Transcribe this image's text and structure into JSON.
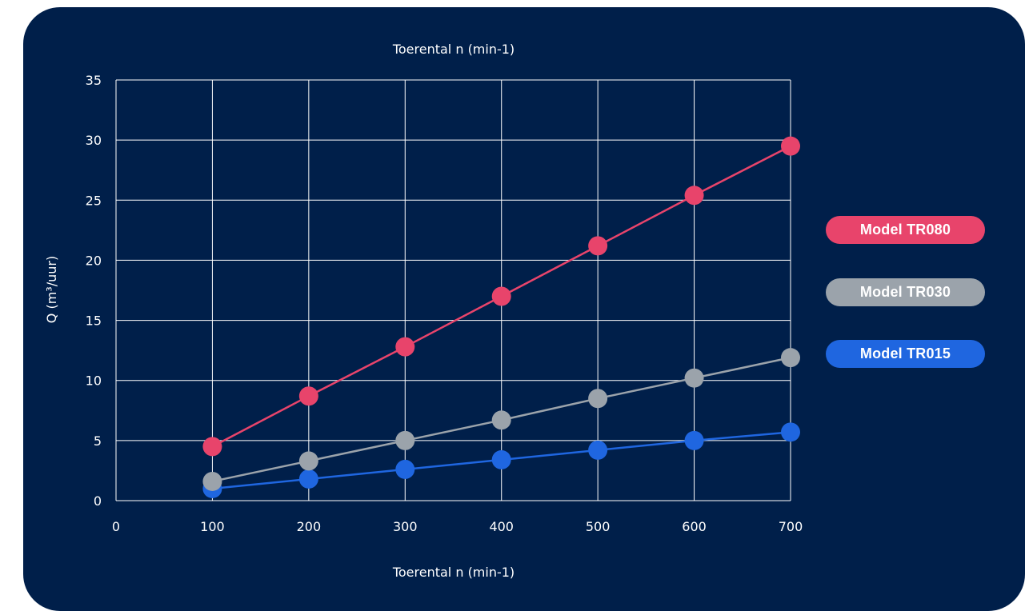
{
  "chart_data": {
    "type": "line",
    "top_axis_label": "Toerental n (min-1)",
    "xlabel": "Toerental n (min-1)",
    "ylabel": "Q (m³/uur)",
    "x_ticks": [
      "0",
      "100",
      "200",
      "300",
      "400",
      "500",
      "600",
      "700"
    ],
    "y_ticks": [
      "0",
      "5",
      "10",
      "15",
      "20",
      "25",
      "30",
      "35"
    ],
    "xlim": [
      0,
      700
    ],
    "ylim": [
      0,
      35
    ],
    "grid": true,
    "legend_position": "right",
    "x": [
      100,
      200,
      300,
      400,
      500,
      600,
      700
    ],
    "series": [
      {
        "name": "Model TR080",
        "color": "#e8446b",
        "values": [
          4.5,
          8.7,
          12.8,
          17.0,
          21.2,
          25.4,
          29.5
        ]
      },
      {
        "name": "Model TR030",
        "color": "#9ba3ab",
        "values": [
          1.6,
          3.3,
          5.0,
          6.7,
          8.5,
          10.2,
          11.9
        ]
      },
      {
        "name": "Model TR015",
        "color": "#1f66e0",
        "values": [
          1.0,
          1.8,
          2.6,
          3.4,
          4.2,
          5.0,
          5.7
        ]
      }
    ]
  }
}
